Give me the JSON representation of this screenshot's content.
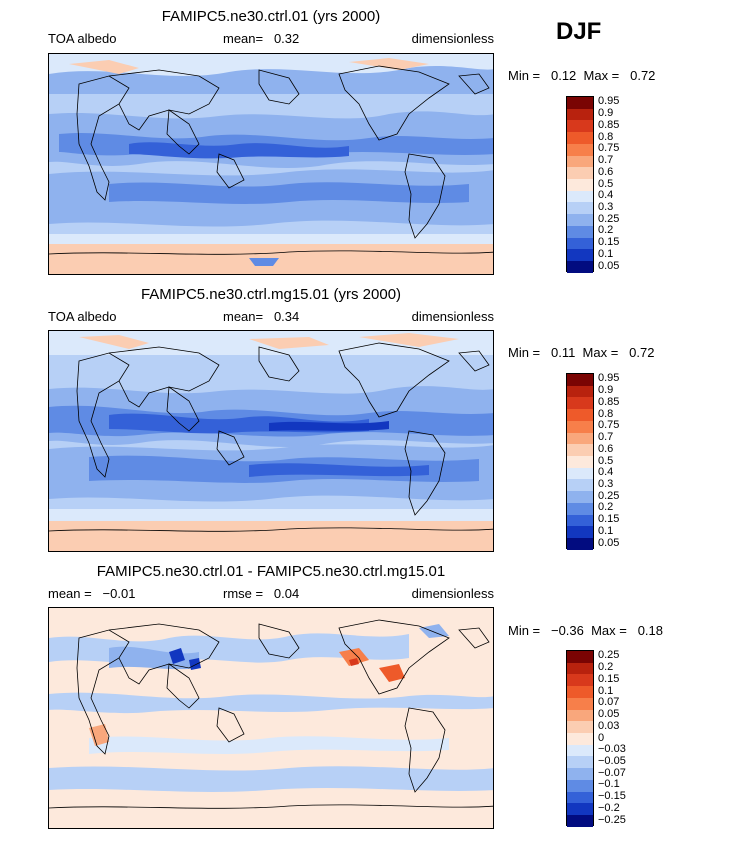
{
  "season": "DJF",
  "panels": [
    {
      "title": "FAMIPC5.ne30.ctrl.01 (yrs 2000)",
      "left_label": "TOA albedo",
      "mid_label": "mean=   0.32",
      "right_label": "dimensionless",
      "minmax": "Min =   0.12  Max =   0.72",
      "colorbar_labels": [
        "0.95",
        "0.9",
        "0.85",
        "0.8",
        "0.75",
        "0.7",
        "0.6",
        "0.5",
        "0.4",
        "0.3",
        "0.25",
        "0.2",
        "0.15",
        "0.1",
        "0.05"
      ]
    },
    {
      "title": "FAMIPC5.ne30.ctrl.mg15.01 (yrs 2000)",
      "left_label": "TOA albedo",
      "mid_label": "mean=   0.34",
      "right_label": "dimensionless",
      "minmax": "Min =   0.11  Max =   0.72",
      "colorbar_labels": [
        "0.95",
        "0.9",
        "0.85",
        "0.8",
        "0.75",
        "0.7",
        "0.6",
        "0.5",
        "0.4",
        "0.3",
        "0.25",
        "0.2",
        "0.15",
        "0.1",
        "0.05"
      ]
    },
    {
      "title": "FAMIPC5.ne30.ctrl.01 - FAMIPC5.ne30.ctrl.mg15.01",
      "left_label": "mean =   −0.01",
      "mid_label": "rmse =   0.04",
      "right_label": "dimensionless",
      "minmax": "Min =   −0.36  Max =   0.18",
      "colorbar_labels": [
        "0.25",
        "0.2",
        "0.15",
        "0.1",
        "0.07",
        "0.05",
        "0.03",
        "0",
        "−0.03",
        "−0.05",
        "−0.07",
        "−0.1",
        "−0.15",
        "−0.2",
        "−0.25"
      ]
    }
  ],
  "colors": {
    "scale": [
      "#7a0403",
      "#b8220e",
      "#d8391c",
      "#ee5a2a",
      "#f77f4a",
      "#f9a77c",
      "#fbcdb2",
      "#fde9dc",
      "#dbe9fb",
      "#b7d0f6",
      "#8fb2ee",
      "#5f8be4",
      "#3461d8",
      "#1237c0",
      "#020c80"
    ]
  },
  "chart_data": [
    {
      "type": "heatmap",
      "title": "FAMIPC5.ne30.ctrl.01 (yrs 2000)",
      "variable": "TOA albedo",
      "units": "dimensionless",
      "mean": 0.32,
      "min": 0.12,
      "max": 0.72,
      "levels": [
        0.05,
        0.1,
        0.15,
        0.2,
        0.25,
        0.3,
        0.4,
        0.5,
        0.6,
        0.7,
        0.75,
        0.8,
        0.85,
        0.9,
        0.95
      ]
    },
    {
      "type": "heatmap",
      "title": "FAMIPC5.ne30.ctrl.mg15.01 (yrs 2000)",
      "variable": "TOA albedo",
      "units": "dimensionless",
      "mean": 0.34,
      "min": 0.11,
      "max": 0.72,
      "levels": [
        0.05,
        0.1,
        0.15,
        0.2,
        0.25,
        0.3,
        0.4,
        0.5,
        0.6,
        0.7,
        0.75,
        0.8,
        0.85,
        0.9,
        0.95
      ]
    },
    {
      "type": "heatmap",
      "title": "FAMIPC5.ne30.ctrl.01 - FAMIPC5.ne30.ctrl.mg15.01",
      "units": "dimensionless",
      "mean": -0.01,
      "rmse": 0.04,
      "min": -0.36,
      "max": 0.18,
      "levels": [
        -0.25,
        -0.2,
        -0.15,
        -0.1,
        -0.07,
        -0.05,
        -0.03,
        0,
        0.03,
        0.05,
        0.07,
        0.1,
        0.15,
        0.2,
        0.25
      ]
    }
  ]
}
